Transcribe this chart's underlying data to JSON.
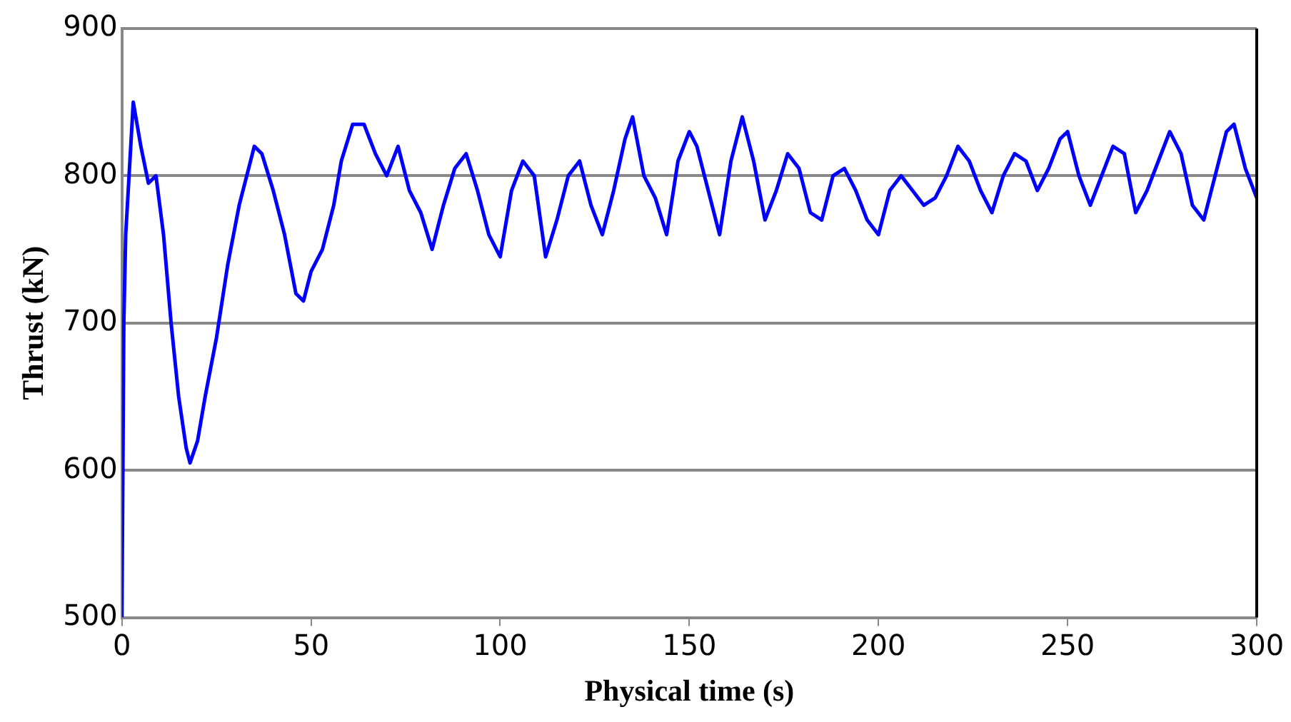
{
  "chart_data": {
    "type": "line",
    "xlabel": "Physical time (s)",
    "ylabel": "Thrust (kN)",
    "xlim": [
      0,
      300
    ],
    "xticks": [
      0,
      50,
      100,
      150,
      200,
      250,
      300
    ],
    "ylim": [
      500,
      900
    ],
    "yticks": [
      500,
      600,
      700,
      800,
      900
    ],
    "grid": "y",
    "legend": false,
    "marker": "none",
    "line_style": "solid",
    "series": [
      {
        "color": "#0000ff",
        "x": [
          0,
          0.5,
          1,
          3,
          5,
          7,
          9,
          11,
          13,
          15,
          17,
          18,
          20,
          22,
          25,
          28,
          31,
          35,
          37,
          40,
          43,
          46,
          48,
          50,
          53,
          56,
          58,
          61,
          64,
          67,
          70,
          73,
          76,
          79,
          82,
          85,
          88,
          91,
          94,
          97,
          100,
          103,
          106,
          109,
          112,
          115,
          118,
          121,
          124,
          127,
          130,
          133,
          135,
          138,
          141,
          144,
          147,
          150,
          152,
          155,
          158,
          161,
          164,
          167,
          170,
          173,
          176,
          179,
          182,
          185,
          188,
          191,
          194,
          197,
          200,
          203,
          206,
          209,
          212,
          215,
          218,
          221,
          224,
          227,
          230,
          233,
          236,
          239,
          242,
          245,
          248,
          250,
          253,
          256,
          259,
          262,
          265,
          268,
          271,
          274,
          277,
          280,
          283,
          286,
          289,
          292,
          294,
          297,
          300
        ],
        "values": [
          500,
          700,
          760,
          850,
          820,
          795,
          800,
          760,
          700,
          650,
          615,
          605,
          620,
          650,
          690,
          740,
          780,
          820,
          815,
          790,
          760,
          720,
          715,
          735,
          750,
          780,
          810,
          835,
          835,
          815,
          800,
          820,
          790,
          775,
          750,
          780,
          805,
          815,
          790,
          760,
          745,
          790,
          810,
          800,
          745,
          770,
          800,
          810,
          780,
          760,
          790,
          825,
          840,
          800,
          785,
          760,
          810,
          830,
          820,
          790,
          760,
          810,
          840,
          810,
          770,
          790,
          815,
          805,
          775,
          770,
          800,
          805,
          790,
          770,
          760,
          790,
          800,
          790,
          780,
          785,
          800,
          820,
          810,
          790,
          775,
          800,
          815,
          810,
          790,
          805,
          825,
          830,
          800,
          780,
          800,
          820,
          815,
          775,
          790,
          810,
          830,
          815,
          780,
          770,
          800,
          830,
          835,
          805,
          785
        ]
      }
    ]
  }
}
